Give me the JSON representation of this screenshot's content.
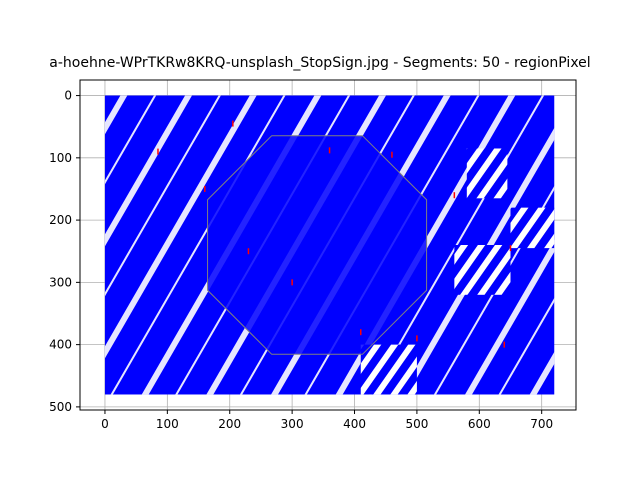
{
  "chart_data": {
    "type": "image",
    "title": "a-hoehne-WPrTKRw8KRQ-unsplash_StopSign.jpg - Segments: 50 - regionPixel",
    "xlabel": "",
    "ylabel": "",
    "xlim": [
      -40,
      755
    ],
    "ylim": [
      505,
      -25
    ],
    "y_inverted": true,
    "grid": true,
    "x_ticks": [
      0,
      100,
      200,
      300,
      400,
      500,
      600,
      700
    ],
    "y_ticks": [
      0,
      100,
      200,
      300,
      400,
      500
    ],
    "image_extent": {
      "x": [
        0,
        720
      ],
      "y": [
        0,
        480
      ]
    },
    "segments": 50,
    "colors": {
      "stroke": "#0000ff",
      "background": "#ffffff",
      "boundary": "#ff0000",
      "gap": "#808080",
      "grid": "#b0b0b0"
    }
  }
}
